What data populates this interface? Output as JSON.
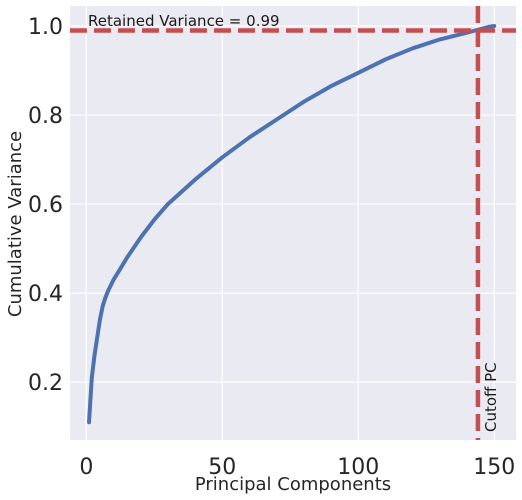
{
  "chart_data": {
    "type": "line",
    "title": "",
    "xlabel": "Principal Components",
    "ylabel": "Cumulative Variance",
    "xlim": [
      -6,
      158
    ],
    "ylim": [
      0.07,
      1.045
    ],
    "xticks": [
      0,
      50,
      100,
      150
    ],
    "yticks": [
      0.2,
      0.4,
      0.6,
      0.8,
      1.0
    ],
    "xtick_labels": [
      "0",
      "50",
      "100",
      "150"
    ],
    "ytick_labels": [
      "0.2",
      "0.4",
      "0.6",
      "0.8",
      "1.0"
    ],
    "grid": true,
    "series": [
      {
        "color": "#4c72b0",
        "x": [
          1,
          2,
          3,
          4,
          5,
          6,
          7,
          8,
          10,
          12,
          15,
          20,
          25,
          30,
          40,
          50,
          60,
          70,
          80,
          90,
          100,
          110,
          120,
          130,
          140,
          143,
          145,
          148,
          150
        ],
        "y": [
          0.11,
          0.21,
          0.26,
          0.3,
          0.34,
          0.37,
          0.39,
          0.405,
          0.43,
          0.45,
          0.48,
          0.525,
          0.565,
          0.6,
          0.655,
          0.705,
          0.75,
          0.79,
          0.83,
          0.865,
          0.895,
          0.925,
          0.95,
          0.97,
          0.985,
          0.99,
          0.993,
          0.998,
          1.0
        ]
      }
    ],
    "hline": {
      "y": 0.99,
      "color": "#c44e52",
      "label": "Retained Variance = 0.99"
    },
    "vline": {
      "x": 144,
      "color": "#c44e52",
      "label": "Cutoff PC"
    }
  }
}
